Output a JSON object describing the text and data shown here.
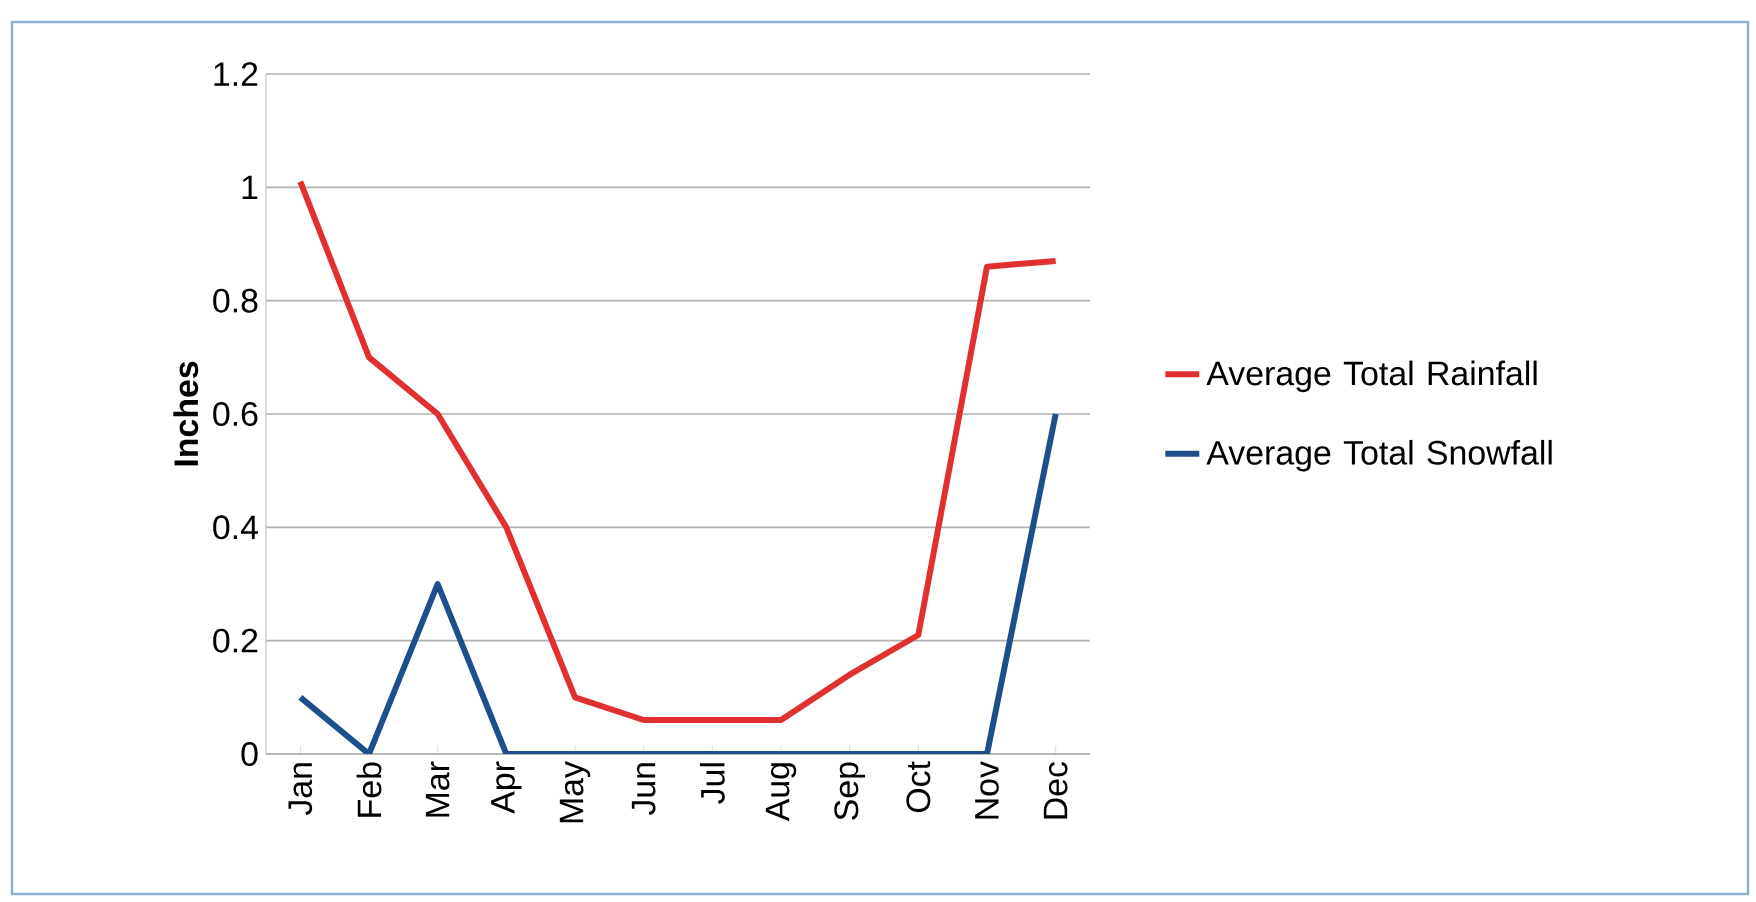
{
  "chart_data": {
    "type": "line",
    "ylabel": "Inches",
    "categories": [
      "Jan",
      "Feb",
      "Mar",
      "Apr",
      "May",
      "Jun",
      "Jul",
      "Aug",
      "Sep",
      "Oct",
      "Nov",
      "Dec"
    ],
    "series": [
      {
        "name": "Average Total Rainfall",
        "color": "#e03030",
        "values": [
          1.01,
          0.7,
          0.6,
          0.4,
          0.1,
          0.06,
          0.06,
          0.06,
          0.14,
          0.21,
          0.86,
          0.87
        ]
      },
      {
        "name": "Average Total Snowfall",
        "color": "#1f4e8c",
        "values": [
          0.1,
          0,
          0.3,
          0,
          0,
          0,
          0,
          0,
          0,
          0,
          0,
          0.6
        ]
      }
    ],
    "ylim": [
      0,
      1.2
    ],
    "yticks": [
      0,
      0.2,
      0.4,
      0.6,
      0.8,
      1,
      1.2
    ],
    "grid": "y",
    "legend": "right",
    "marker": "none",
    "line_style": "solid"
  }
}
